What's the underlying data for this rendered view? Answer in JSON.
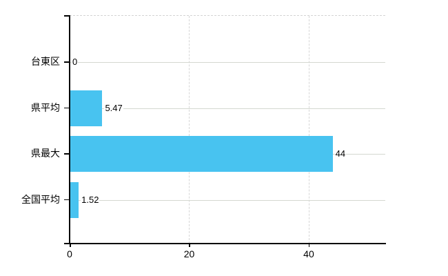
{
  "chart_data": {
    "type": "bar",
    "orientation": "horizontal",
    "title": "",
    "xlabel": "",
    "ylabel": "",
    "categories": [
      "台東区",
      "県平均",
      "県最大",
      "全国平均"
    ],
    "values": [
      0,
      5.47,
      44,
      1.52
    ],
    "value_labels": [
      "0",
      "5.47",
      "44",
      "1.52"
    ],
    "xticks": [
      0,
      20,
      40
    ],
    "xtick_labels": [
      "0",
      "20",
      "40"
    ],
    "xlim": [
      0,
      52.8
    ],
    "grid": "on",
    "legend": "none",
    "bar_color": "#48c3f0",
    "gridline_color": "#d4d8d0",
    "axis_color": "#000000",
    "text_color": "#000000",
    "background_color": "#ffffff"
  }
}
